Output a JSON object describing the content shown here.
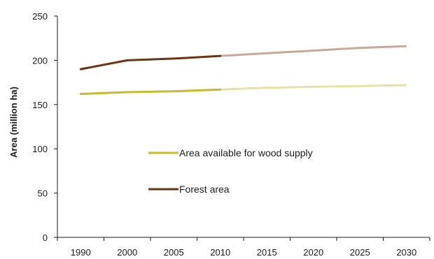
{
  "chart_data": {
    "type": "line",
    "title": "",
    "xlabel": "",
    "ylabel": "Area (million ha)",
    "categories": [
      "1990",
      "2000",
      "2005",
      "2010",
      "2015",
      "2020",
      "2025",
      "2030"
    ],
    "ylim": [
      0,
      250
    ],
    "yticks": [
      0,
      50,
      100,
      150,
      200,
      250
    ],
    "grid": false,
    "legend_position": "center",
    "projection_start": "2010",
    "series": [
      {
        "name": "Area available for wood supply",
        "values": [
          162,
          164,
          165,
          167,
          169,
          170,
          171,
          172
        ],
        "color": "#c8bb2e",
        "projection_color": "#e6e1a6"
      },
      {
        "name": "Forest area",
        "values": [
          190,
          200,
          202,
          205,
          208,
          211,
          214,
          216
        ],
        "color": "#6b3410",
        "projection_color": "#c9a899"
      }
    ]
  }
}
